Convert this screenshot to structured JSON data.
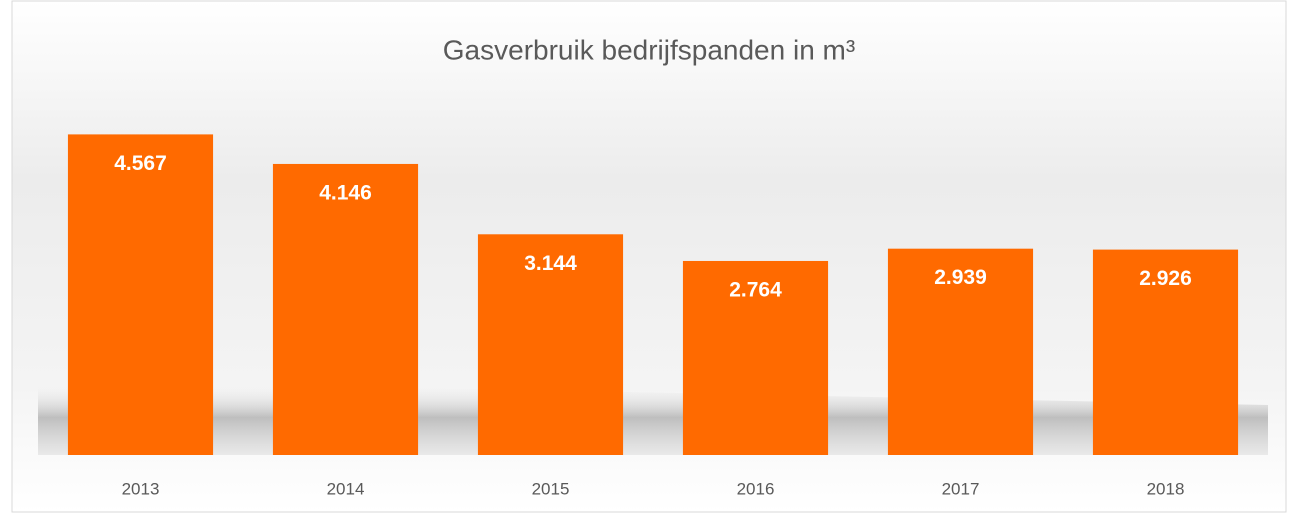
{
  "chart_data": {
    "type": "bar",
    "title": "Gasverbruik bedrijfspanden in m³",
    "categories": [
      "2013",
      "2014",
      "2015",
      "2016",
      "2017",
      "2018"
    ],
    "values": [
      4567,
      4146,
      3144,
      2764,
      2939,
      2926
    ],
    "value_labels": [
      "4.567",
      "4.146",
      "3.144",
      "2.764",
      "2.939",
      "2.926"
    ],
    "color": "#ff6a00",
    "ylim": [
      0,
      5000
    ]
  }
}
